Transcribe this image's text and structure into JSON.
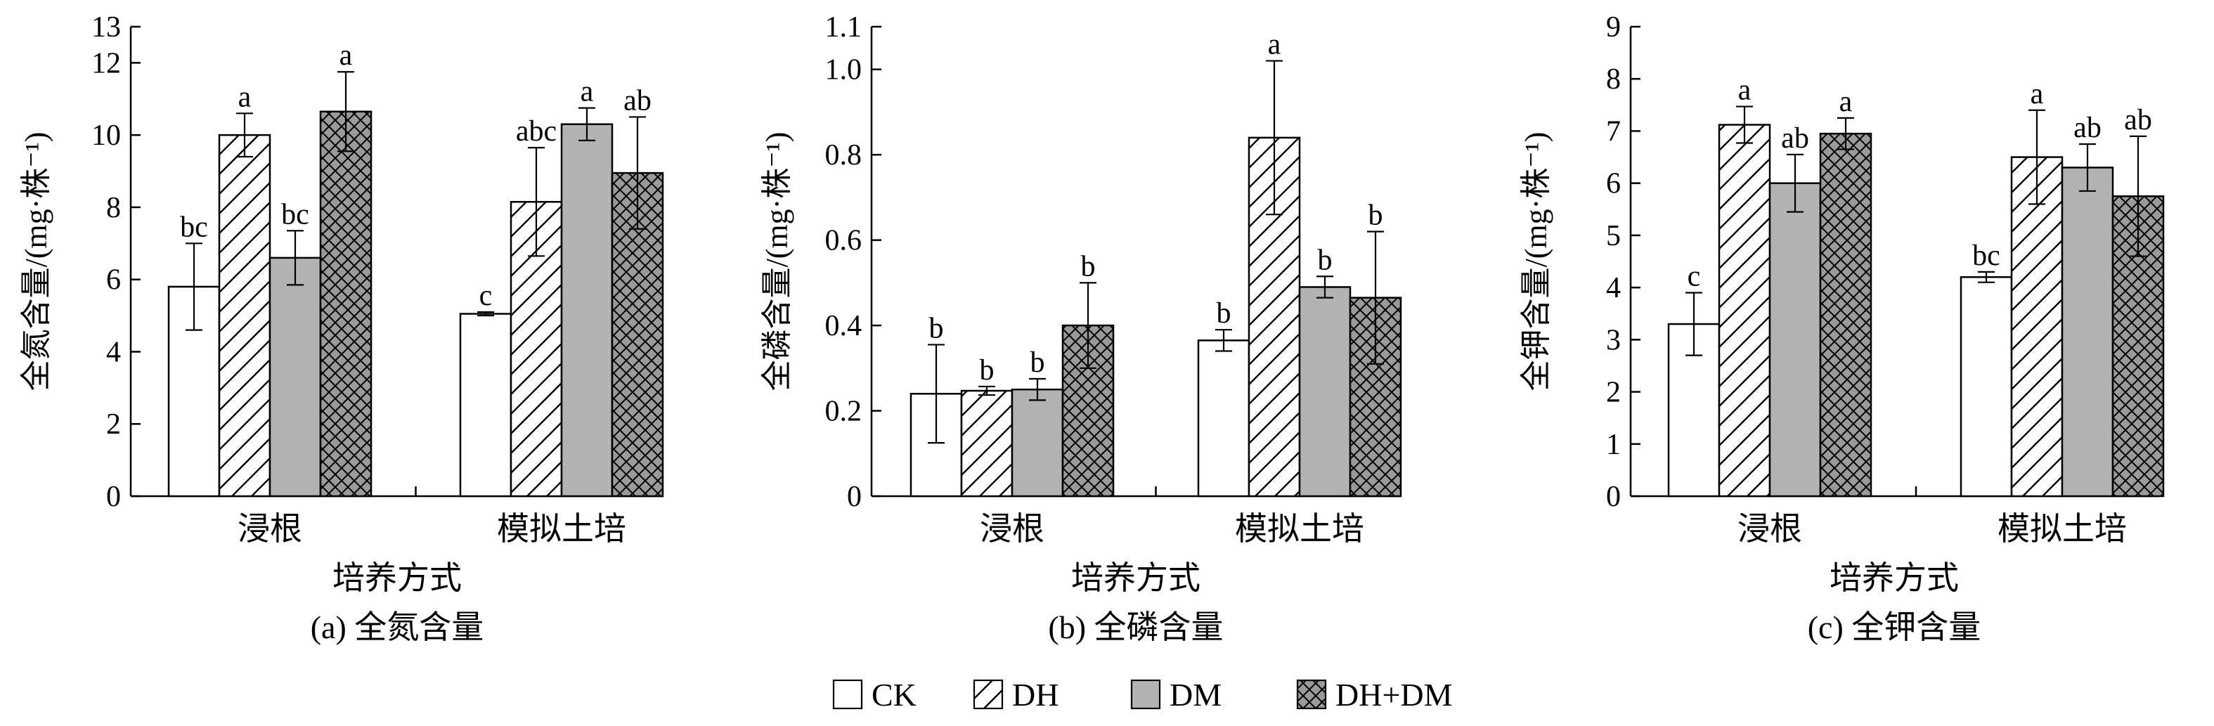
{
  "figure": {
    "x_title": "培养方式",
    "legend": [
      {
        "name": "CK",
        "pattern": "none",
        "fill": "#ffffff"
      },
      {
        "name": "DH",
        "pattern": "diagonal-hatch",
        "fill": "#ffffff"
      },
      {
        "name": "DM",
        "pattern": "solid",
        "fill": "#b3b3b3"
      },
      {
        "name": "DH+DM",
        "pattern": "crosshatch",
        "fill": "#9a9a9a"
      }
    ],
    "colors": {
      "axis": "#000000",
      "gray": "#b3b3b3",
      "cross_bg": "#9a9a9a"
    }
  },
  "chart_data": [
    {
      "type": "bar",
      "caption": "(a) 全氮含量",
      "ylabel": "全氮含量/(mg·株⁻¹)",
      "xlabel": "培养方式",
      "categories": [
        "浸根",
        "模拟土培"
      ],
      "ylim": [
        0,
        13
      ],
      "yticks": [
        0,
        2,
        4,
        6,
        8,
        10,
        12,
        13
      ],
      "series": [
        {
          "name": "CK",
          "values": [
            5.8,
            5.05
          ],
          "errors": [
            1.2,
            0.05
          ],
          "letters": [
            "bc",
            "c"
          ]
        },
        {
          "name": "DH",
          "values": [
            10.0,
            8.15
          ],
          "errors": [
            0.6,
            1.5
          ],
          "letters": [
            "a",
            "abc"
          ]
        },
        {
          "name": "DM",
          "values": [
            6.6,
            10.3
          ],
          "errors": [
            0.75,
            0.45
          ],
          "letters": [
            "bc",
            "a"
          ]
        },
        {
          "name": "DH+DM",
          "values": [
            10.65,
            8.95
          ],
          "errors": [
            1.1,
            1.55
          ],
          "letters": [
            "a",
            "ab"
          ]
        }
      ]
    },
    {
      "type": "bar",
      "caption": "(b) 全磷含量",
      "ylabel": "全磷含量/(mg·株⁻¹)",
      "xlabel": "培养方式",
      "categories": [
        "浸根",
        "模拟土培"
      ],
      "ylim": [
        0,
        1.1
      ],
      "yticks": [
        0,
        0.2,
        0.4,
        0.6,
        0.8,
        1.0,
        1.1
      ],
      "ytick_labels": [
        "0",
        "0.2",
        "0.4",
        "0.6",
        "0.8",
        "1.0",
        "1.1"
      ],
      "series": [
        {
          "name": "CK",
          "values": [
            0.24,
            0.365
          ],
          "errors": [
            0.115,
            0.025
          ],
          "letters": [
            "b",
            "b"
          ]
        },
        {
          "name": "DH",
          "values": [
            0.247,
            0.84
          ],
          "errors": [
            0.01,
            0.18
          ],
          "letters": [
            "b",
            "a"
          ]
        },
        {
          "name": "DM",
          "values": [
            0.25,
            0.49
          ],
          "errors": [
            0.025,
            0.025
          ],
          "letters": [
            "b",
            "b"
          ]
        },
        {
          "name": "DH+DM",
          "values": [
            0.4,
            0.465
          ],
          "errors": [
            0.1,
            0.155
          ],
          "letters": [
            "b",
            "b"
          ]
        }
      ]
    },
    {
      "type": "bar",
      "caption": "(c) 全钾含量",
      "ylabel": "全钾含量/(mg·株⁻¹)",
      "xlabel": "培养方式",
      "categories": [
        "浸根",
        "模拟土培"
      ],
      "ylim": [
        0,
        9
      ],
      "yticks": [
        0,
        1,
        2,
        3,
        4,
        5,
        6,
        7,
        8,
        9
      ],
      "series": [
        {
          "name": "CK",
          "values": [
            3.3,
            4.2
          ],
          "errors": [
            0.6,
            0.1
          ],
          "letters": [
            "c",
            "bc"
          ]
        },
        {
          "name": "DH",
          "values": [
            7.12,
            6.5
          ],
          "errors": [
            0.35,
            0.9
          ],
          "letters": [
            "a",
            "a"
          ]
        },
        {
          "name": "DM",
          "values": [
            6.0,
            6.3
          ],
          "errors": [
            0.55,
            0.45
          ],
          "letters": [
            "ab",
            "ab"
          ]
        },
        {
          "name": "DH+DM",
          "values": [
            6.95,
            5.75
          ],
          "errors": [
            0.3,
            1.15
          ],
          "letters": [
            "a",
            "ab"
          ]
        }
      ]
    }
  ]
}
